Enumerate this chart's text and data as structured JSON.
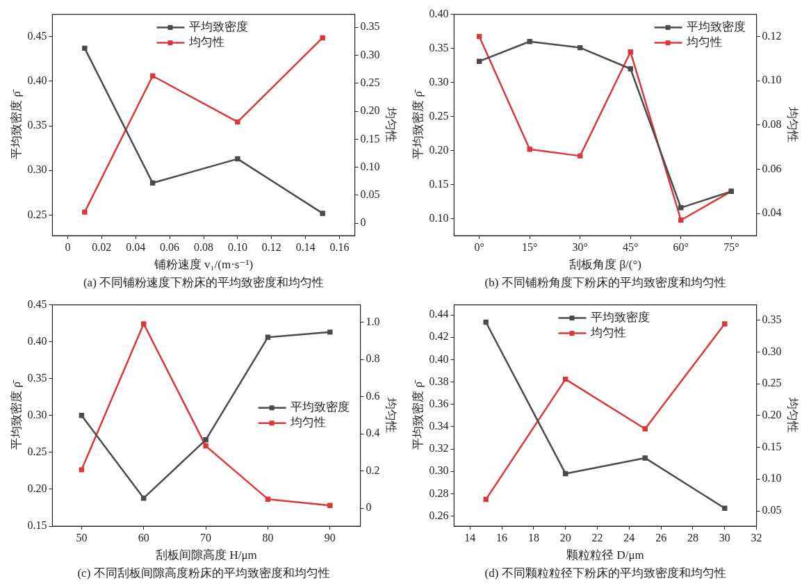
{
  "chart_data": [
    {
      "type": "line",
      "title": "(a) 不同铺粉速度下粉床的平均致密度和均匀性",
      "xlabel": "铺粉速度 v₁/(m·s⁻¹)",
      "ylabel": "平均致密度 ρ̄",
      "y2label": "均匀性",
      "x": [
        0.01,
        0.05,
        0.1,
        0.15
      ],
      "series": [
        {
          "name": "平均致密度",
          "color": "#4a4a4a",
          "values": [
            0.437,
            0.286,
            0.313,
            0.252
          ]
        },
        {
          "name": "均匀性",
          "color": "#d9383a",
          "axis": "y2",
          "values": [
            0.02,
            0.263,
            0.181,
            0.331
          ]
        }
      ],
      "xlim": [
        -0.009,
        0.169
      ],
      "xticks": [
        0,
        0.02,
        0.04,
        0.06,
        0.08,
        {
          "value": 0.1,
          "label": "0.10"
        },
        0.12,
        0.14,
        0.16
      ],
      "ylim": [
        0.227,
        0.475
      ],
      "yticks": [
        0.25,
        {
          "value": 0.3,
          "label": "0.30"
        },
        0.35,
        {
          "value": 0.4,
          "label": "0.40"
        },
        0.45
      ],
      "y2lim": [
        -0.022,
        0.373
      ],
      "y2ticks": [
        0,
        0.05,
        {
          "value": 0.1,
          "label": "0.10"
        },
        0.15,
        {
          "value": 0.2,
          "label": "0.20"
        },
        0.25,
        {
          "value": 0.3,
          "label": "0.30"
        },
        0.35
      ],
      "grid": false,
      "legend": "top",
      "marker": "square",
      "line_style": "solid"
    },
    {
      "type": "line",
      "title": "(b) 不同铺粉角度下粉床的平均致密度和均匀性",
      "xlabel": "刮板角度 β/(°)",
      "ylabel": "平均致密度 ρ̄",
      "y2label": "均匀性",
      "categories": [
        "0°",
        "15°",
        "30°",
        "45°",
        "60°",
        "75°"
      ],
      "series": [
        {
          "name": "平均致密度",
          "color": "#4a4a4a",
          "values": [
            0.331,
            0.36,
            0.351,
            0.32,
            0.116,
            0.14
          ]
        },
        {
          "name": "均匀性",
          "color": "#d9383a",
          "axis": "y2",
          "values": [
            0.12,
            0.069,
            0.066,
            0.113,
            0.037,
            0.05
          ]
        }
      ],
      "ylim": [
        0.075,
        0.4
      ],
      "yticks": [
        {
          "value": 0.1,
          "label": "0.10"
        },
        0.15,
        {
          "value": 0.2,
          "label": "0.20"
        },
        0.25,
        {
          "value": 0.3,
          "label": "0.30"
        },
        0.35,
        {
          "value": 0.4,
          "label": "0.40"
        }
      ],
      "y2lim": [
        0.03,
        0.13
      ],
      "y2ticks": [
        0.04,
        0.06,
        0.08,
        {
          "value": 0.1,
          "label": "0.10"
        },
        0.12
      ],
      "grid": false,
      "legend": "top right",
      "marker": "square",
      "line_style": "solid"
    },
    {
      "type": "line",
      "title": "(c) 不同刮板间隙高度粉床的平均致密度和均匀性",
      "xlabel": "刮板间隙高度 H/μm",
      "ylabel": "平均致密度 ρ̄",
      "y2label": "均匀性",
      "x": [
        50,
        60,
        70,
        80,
        90
      ],
      "series": [
        {
          "name": "平均致密度",
          "color": "#4a4a4a",
          "values": [
            0.3,
            0.188,
            0.267,
            0.406,
            0.413
          ]
        },
        {
          "name": "均匀性",
          "color": "#d9383a",
          "axis": "y2",
          "values": [
            0.207,
            0.991,
            0.335,
            0.049,
            0.015
          ]
        }
      ],
      "xlim": [
        45.3,
        94.9
      ],
      "xticks": [
        50,
        60,
        70,
        80,
        90
      ],
      "ylim": [
        0.15,
        0.45
      ],
      "yticks": [
        0.15,
        {
          "value": 0.2,
          "label": "0.20"
        },
        0.25,
        {
          "value": 0.3,
          "label": "0.30"
        },
        0.35,
        {
          "value": 0.4,
          "label": "0.40"
        },
        0.45
      ],
      "y2lim": [
        -0.096,
        1.093
      ],
      "y2ticks": [
        0,
        0.2,
        0.4,
        0.6,
        0.8,
        {
          "value": 1,
          "label": "1.0"
        }
      ],
      "grid": false,
      "legend": "right",
      "marker": "square",
      "line_style": "solid"
    },
    {
      "type": "line",
      "title": "(d) 不同颗粒粒径下粉床的平均致密度和均匀性",
      "xlabel": "颗粒粒径 D/μm",
      "ylabel": "平均致密度 ρ̄",
      "y2label": "均匀性",
      "x": [
        15,
        20,
        25,
        30
      ],
      "series": [
        {
          "name": "平均致密度",
          "color": "#4a4a4a",
          "values": [
            0.4335,
            0.298,
            0.312,
            0.267
          ]
        },
        {
          "name": "均匀性",
          "color": "#d9383a",
          "axis": "y2",
          "values": [
            0.068,
            0.257,
            0.179,
            0.344
          ]
        }
      ],
      "xlim": [
        13,
        32
      ],
      "xticks": [
        14,
        16,
        18,
        20,
        22,
        24,
        26,
        28,
        30,
        32
      ],
      "ylim": [
        0.251,
        0.449
      ],
      "yticks": [
        0.26,
        0.28,
        {
          "value": 0.3,
          "label": "0.30"
        },
        0.32,
        0.34,
        0.36,
        0.38,
        {
          "value": 0.4,
          "label": "0.40"
        },
        0.42,
        0.44
      ],
      "y2lim": [
        0.026,
        0.374
      ],
      "y2ticks": [
        0.05,
        {
          "value": 0.1,
          "label": "0.10"
        },
        0.15,
        {
          "value": 0.2,
          "label": "0.20"
        },
        0.25,
        {
          "value": 0.3,
          "label": "0.30"
        },
        0.35
      ],
      "grid": false,
      "legend": "top",
      "marker": "square",
      "line_style": "solid"
    }
  ]
}
